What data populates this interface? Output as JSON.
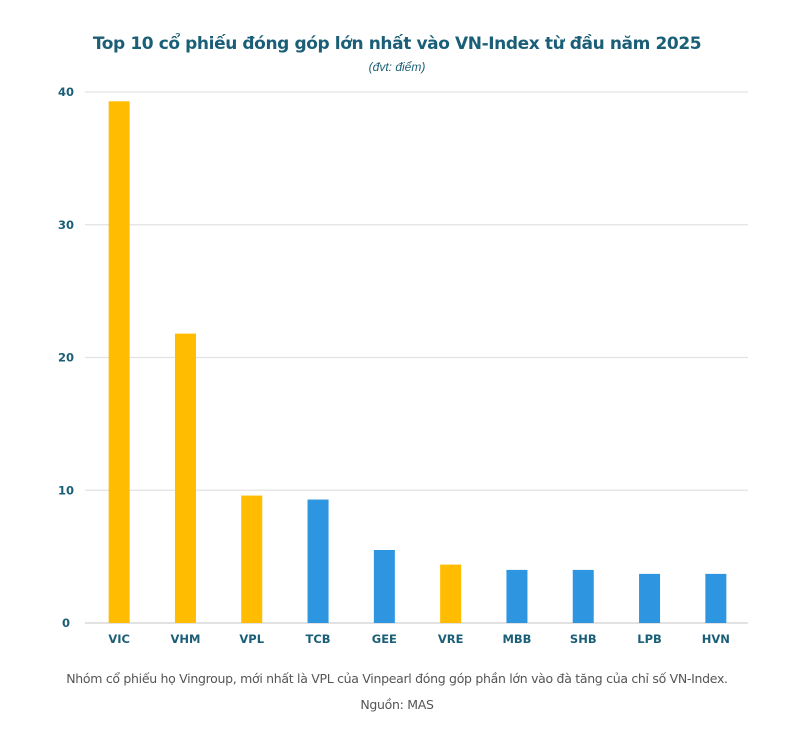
{
  "chart_data": {
    "type": "bar",
    "title": "Top 10 cổ phiếu đóng góp lớn nhất vào VN-Index từ đầu năm 2025",
    "subtitle": "(đvt: điểm)",
    "xlabel": "",
    "ylabel": "",
    "ylim": [
      0,
      40
    ],
    "yticks": [
      0,
      10,
      20,
      30,
      40
    ],
    "grid": true,
    "legend": "none",
    "categories": [
      "VIC",
      "VHM",
      "VPL",
      "TCB",
      "GEE",
      "VRE",
      "MBB",
      "SHB",
      "LPB",
      "HVN"
    ],
    "values": [
      39.3,
      21.8,
      9.6,
      9.3,
      5.5,
      4.4,
      4.0,
      4.0,
      3.7,
      3.7
    ],
    "groups": [
      "Vingroup",
      "Vingroup",
      "Vingroup",
      "Other",
      "Other",
      "Vingroup",
      "Other",
      "Other",
      "Other",
      "Other"
    ],
    "colors": {
      "Vingroup": "#FFBC00",
      "Other": "#2E95E0",
      "axis_text": "#1a5f77",
      "grid": "#e3e3e3"
    }
  },
  "caption": "Nhóm cổ phiếu họ Vingroup, mới nhất là VPL của Vinpearl đóng góp phần lớn vào đà tăng của chỉ số VN-Index. Nguồn: MAS"
}
